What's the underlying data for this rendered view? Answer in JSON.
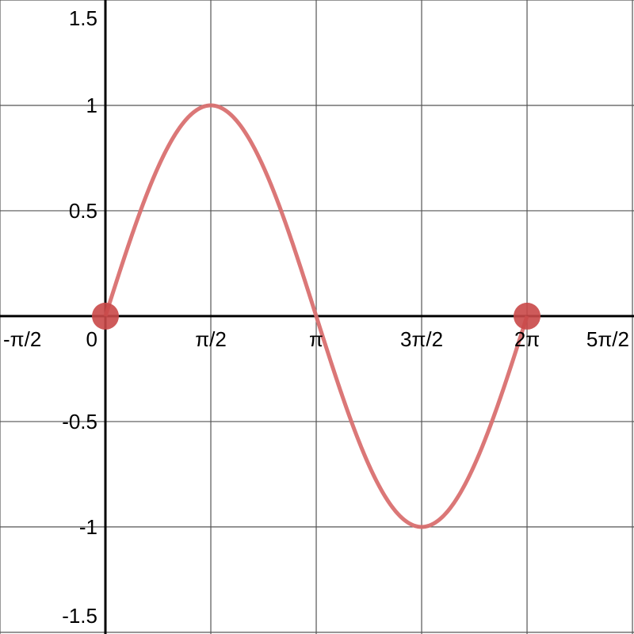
{
  "chart_data": {
    "type": "line",
    "function": "sin(x)",
    "domain": [
      0,
      6.283185
    ],
    "xlim": [
      -1.5708,
      7.877
    ],
    "ylim": [
      -1.508,
      1.5
    ],
    "grid": true,
    "x_ticks": [
      {
        "value": -1.5708,
        "label": "-π/2"
      },
      {
        "value": 0,
        "label": "0"
      },
      {
        "value": 1.5708,
        "label": "π/2"
      },
      {
        "value": 3.14159,
        "label": "π"
      },
      {
        "value": 4.71239,
        "label": "3π/2"
      },
      {
        "value": 6.28319,
        "label": "2π"
      },
      {
        "value": 7.85398,
        "label": "5π/2"
      }
    ],
    "y_ticks": [
      {
        "value": 1.5,
        "label": "1.5"
      },
      {
        "value": 1,
        "label": "1"
      },
      {
        "value": 0.5,
        "label": "0.5"
      },
      {
        "value": -0.5,
        "label": "-0.5"
      },
      {
        "value": -1,
        "label": "-1"
      },
      {
        "value": -1.5,
        "label": "-1.5"
      }
    ],
    "series": [
      {
        "values_description_free": true,
        "color": "#d97070",
        "x": [
          0,
          0.7854,
          1.5708,
          2.3562,
          3.1416,
          3.927,
          4.7124,
          5.4978,
          6.2832
        ],
        "y": [
          0,
          0.7071,
          1,
          0.7071,
          0,
          -0.7071,
          -1,
          -0.7071,
          0
        ]
      }
    ],
    "points": [
      {
        "x": 0,
        "y": 0,
        "color": "#c94848"
      },
      {
        "x": 6.283185,
        "y": 0,
        "color": "#c94848"
      }
    ]
  }
}
